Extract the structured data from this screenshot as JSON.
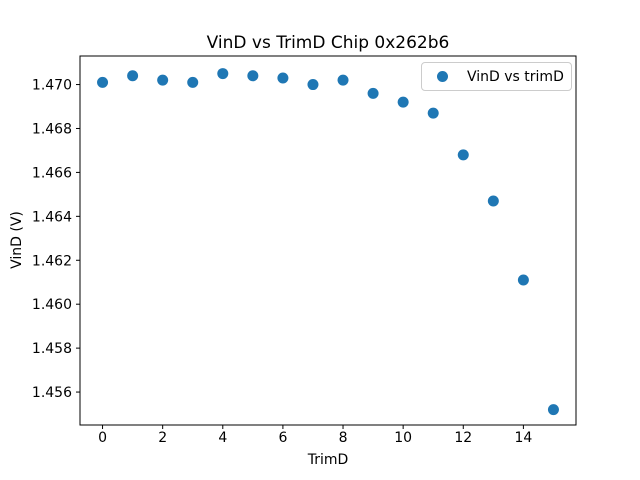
{
  "figure": {
    "title": "VinD vs TrimD Chip 0x262b6",
    "xlabel": "TrimD",
    "ylabel": "VinD (V)",
    "background_color": "#ffffff",
    "frame_color": "#000000"
  },
  "legend": {
    "label": "VinD vs trimD",
    "marker_color": "#1f77b4",
    "position": "upper right"
  },
  "chart_data": {
    "type": "scatter",
    "title": "VinD vs TrimD Chip 0x262b6",
    "xlabel": "TrimD",
    "ylabel": "VinD (V)",
    "series": [
      {
        "name": "VinD vs trimD",
        "color": "#1f77b4",
        "marker": "circle",
        "x": [
          0,
          1,
          2,
          3,
          4,
          5,
          6,
          7,
          8,
          9,
          10,
          11,
          12,
          13,
          14,
          15
        ],
        "y": [
          1.4701,
          1.4704,
          1.4702,
          1.4701,
          1.4705,
          1.4704,
          1.4703,
          1.47,
          1.4702,
          1.4696,
          1.4692,
          1.4687,
          1.4668,
          1.4647,
          1.4611,
          1.4552
        ]
      }
    ],
    "xlim": [
      -0.75,
      15.75
    ],
    "ylim": [
      1.4545,
      1.4713
    ],
    "xticks": {
      "values": [
        0,
        2,
        4,
        6,
        8,
        10,
        12,
        14
      ],
      "labels": [
        "0",
        "2",
        "4",
        "6",
        "8",
        "10",
        "12",
        "14"
      ]
    },
    "yticks": {
      "values": [
        1.456,
        1.458,
        1.46,
        1.462,
        1.464,
        1.466,
        1.468,
        1.47
      ],
      "labels": [
        "1.456",
        "1.458",
        "1.460",
        "1.462",
        "1.464",
        "1.466",
        "1.468",
        "1.470"
      ]
    },
    "grid": false,
    "legend_position": "upper right"
  }
}
